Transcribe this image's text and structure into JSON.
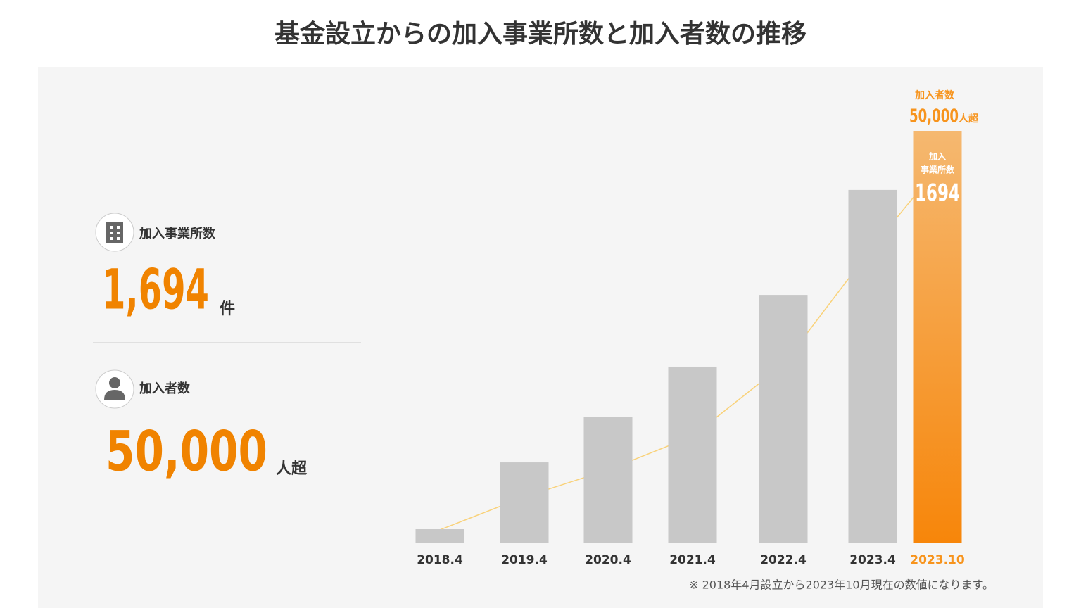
{
  "title": "基金設立からの加入事業所数と加入者数の推移",
  "stats": [
    {
      "label": "加入事業所数",
      "value": "1,694",
      "unit": "件"
    },
    {
      "label": "加入者数",
      "value": "50,000",
      "unit": "人超"
    }
  ],
  "chart_data": {
    "type": "bar",
    "categories": [
      "2018.4",
      "2019.4",
      "2020.4",
      "2021.4",
      "2022.4",
      "2023.4",
      "2023.10"
    ],
    "series": [
      {
        "name": "加入事業所数",
        "name_lines": [
          "加入",
          "事業所数"
        ],
        "color": "#c8c8c8",
        "highlight_color": "#f7941d",
        "values": [
          55,
          330,
          518,
          724,
          1019,
          1451,
          1694
        ]
      },
      {
        "name": "加入者数",
        "color": "#f9d27a",
        "axis": "y2",
        "values": [
          1700,
          6100,
          9700,
          14200,
          23800,
          39500,
          50000
        ],
        "value_labels": [
          null,
          null,
          null,
          null,
          null,
          null,
          "50,000"
        ],
        "unit": "人超"
      }
    ],
    "highlight_index": 6,
    "ylim": [
      0,
      1694
    ],
    "y2lim": [
      0,
      55000
    ],
    "footnote": "※ 2018年4月設立から2023年10月現在の数値になります。"
  }
}
